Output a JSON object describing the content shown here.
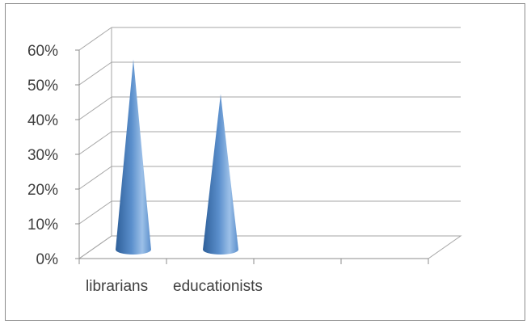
{
  "chart_data": {
    "type": "bar",
    "style": "3d-cone",
    "categories": [
      "librarians",
      "educationists"
    ],
    "values": [
      55,
      45
    ],
    "slots": 4,
    "title": "",
    "xlabel": "",
    "ylabel": "",
    "ylim": [
      0,
      60
    ],
    "yticks": [
      0,
      10,
      20,
      30,
      40,
      50,
      60
    ],
    "ytick_labels": [
      "0%",
      "10%",
      "20%",
      "30%",
      "40%",
      "50%",
      "60%"
    ],
    "grid": true,
    "legend": "none",
    "colors": {
      "cone_dark": "#2e5f99",
      "cone_mid": "#5b8fcc",
      "cone_light": "#9cc0e8",
      "gridline": "#a6a6a6",
      "axis": "#8c8c8c"
    }
  }
}
